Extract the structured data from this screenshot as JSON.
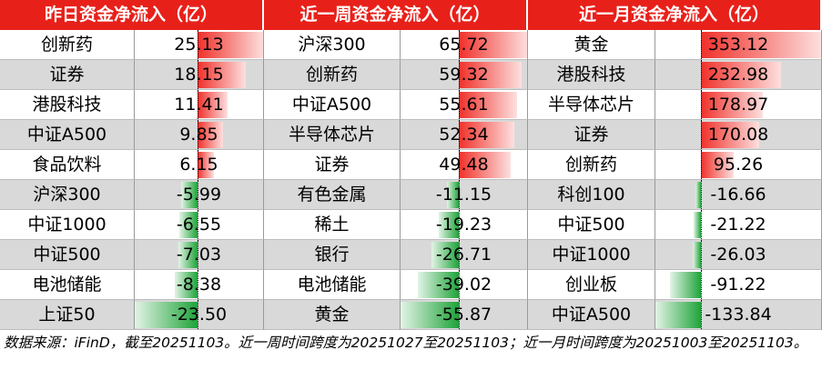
{
  "tables": [
    {
      "title": "昨日资金净流入（亿）",
      "names": [
        "创新药",
        "证券",
        "港股科技",
        "中证A500",
        "食品饮料",
        "沪深300",
        "中证1000",
        "中证500",
        "电池储能",
        "上证50"
      ],
      "values": [
        25.13,
        18.15,
        11.41,
        9.85,
        6.15,
        -5.99,
        -6.55,
        -7.03,
        -8.38,
        -23.5
      ],
      "value_labels": [
        "25.13",
        "18.15",
        "11.41",
        "9.85",
        "6.15",
        "-5.99",
        "-6.55",
        "-7.03",
        "-8.38",
        "-23.50"
      ]
    },
    {
      "title": "近一周资金净流入（亿）",
      "names": [
        "沪深300",
        "创新药",
        "中证A500",
        "半导体芯片",
        "证券",
        "有色金属",
        "稀土",
        "银行",
        "电池储能",
        "黄金"
      ],
      "values": [
        65.72,
        59.32,
        55.61,
        52.34,
        49.48,
        -11.15,
        -19.23,
        -26.71,
        -39.02,
        -55.87
      ],
      "value_labels": [
        "65.72",
        "59.32",
        "55.61",
        "52.34",
        "49.48",
        "-11.15",
        "-19.23",
        "-26.71",
        "-39.02",
        "-55.87"
      ]
    },
    {
      "title": "近一月资金净流入（亿）",
      "names": [
        "黄金",
        "港股科技",
        "半导体芯片",
        "证券",
        "创新药",
        "科创100",
        "中证500",
        "中证1000",
        "创业板",
        "中证A500"
      ],
      "values": [
        353.12,
        232.98,
        178.97,
        170.08,
        95.26,
        -16.66,
        -21.22,
        -26.03,
        -91.22,
        -133.84
      ],
      "value_labels": [
        "353.12",
        "232.98",
        "178.97",
        "170.08",
        "95.26",
        "-16.66",
        "-21.22",
        "-26.03",
        "-91.22",
        "-133.84"
      ]
    }
  ],
  "footnote": "数据来源：iFinD，截至20251103。近一周时间跨度为20251027至20251103；近一月时间跨度为20251003至20251103。"
}
